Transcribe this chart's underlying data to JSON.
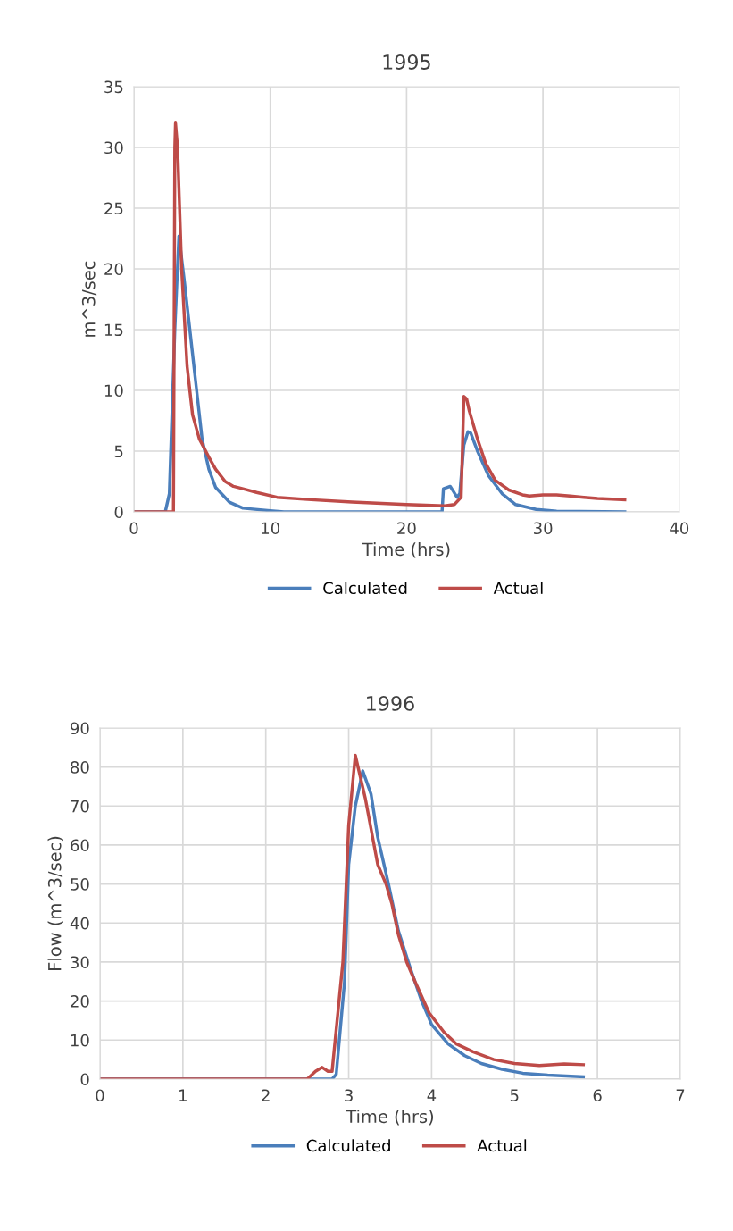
{
  "chart_data": [
    {
      "type": "line",
      "title": "1995",
      "xlabel": "Time (hrs)",
      "ylabel": "m^3/sec",
      "xlim": [
        0,
        40
      ],
      "xticks": [
        0,
        10,
        20,
        30,
        40
      ],
      "ylim": [
        0,
        35
      ],
      "yticks": [
        0,
        5,
        10,
        15,
        20,
        25,
        30,
        35
      ],
      "grid": true,
      "legend": "bottom",
      "marker": "none",
      "line_style": "solid",
      "series": [
        {
          "name": "Calculated",
          "color": "#4a7ebb",
          "x": [
            0,
            2.3,
            2.6,
            3.0,
            3.3,
            3.7,
            4.1,
            4.5,
            5.0,
            5.5,
            6.0,
            7.0,
            8.0,
            10.0,
            11.0,
            22.6,
            22.7,
            23.2,
            23.7,
            23.9,
            24.2,
            24.5,
            24.7,
            25.2,
            26.0,
            27.0,
            28.0,
            29.5,
            31.0,
            36.0
          ],
          "values": [
            0,
            0,
            1.5,
            15,
            22.7,
            19,
            15,
            11,
            6,
            3.5,
            2,
            0.8,
            0.3,
            0.1,
            0,
            0,
            1.9,
            2.1,
            1.2,
            1.5,
            5.5,
            6.6,
            6.5,
            5,
            3,
            1.5,
            0.6,
            0.2,
            0.05,
            0
          ]
        },
        {
          "name": "Actual",
          "color": "#be4b48",
          "x": [
            0,
            2.9,
            3.0,
            3.05,
            3.2,
            3.5,
            3.9,
            4.3,
            4.8,
            5.5,
            6.0,
            6.7,
            7.3,
            8.0,
            9.0,
            10.5,
            13.0,
            16.0,
            20.0,
            22.8,
            23.5,
            24.0,
            24.2,
            24.4,
            24.6,
            25.2,
            25.8,
            26.5,
            27.5,
            28.5,
            29.0,
            30.0,
            31.0,
            32.0,
            33.0,
            34.0,
            36.0
          ],
          "values": [
            0,
            0,
            30,
            32,
            30,
            20,
            12,
            8,
            6,
            4.5,
            3.5,
            2.5,
            2.1,
            1.9,
            1.6,
            1.2,
            1.0,
            0.8,
            0.6,
            0.5,
            0.6,
            1.2,
            9.5,
            9.3,
            8.3,
            6,
            4,
            2.6,
            1.8,
            1.4,
            1.3,
            1.4,
            1.4,
            1.3,
            1.2,
            1.1,
            1.0
          ]
        }
      ]
    },
    {
      "type": "line",
      "title": "1996",
      "xlabel": "Time (hrs)",
      "ylabel": "Flow (m^3/sec)",
      "xlim": [
        0,
        7
      ],
      "xticks": [
        0,
        1,
        2,
        3,
        4,
        5,
        6,
        7
      ],
      "ylim": [
        0,
        90
      ],
      "yticks": [
        0,
        10,
        20,
        30,
        40,
        50,
        60,
        70,
        80,
        90
      ],
      "grid": true,
      "legend": "bottom",
      "marker": "none",
      "line_style": "solid",
      "series": [
        {
          "name": "Calculated",
          "color": "#4a7ebb",
          "x": [
            0,
            2.8,
            2.85,
            2.95,
            3.0,
            3.08,
            3.17,
            3.27,
            3.35,
            3.48,
            3.6,
            3.75,
            3.88,
            4.0,
            4.2,
            4.4,
            4.6,
            4.85,
            5.1,
            5.4,
            5.83
          ],
          "values": [
            0,
            0,
            1.2,
            25,
            55,
            70,
            79,
            73,
            62,
            50,
            38,
            28,
            20,
            14,
            9,
            6,
            4,
            2.5,
            1.5,
            1,
            0.6
          ]
        },
        {
          "name": "Actual",
          "color": "#be4b48",
          "x": [
            0,
            2.5,
            2.6,
            2.68,
            2.75,
            2.8,
            2.93,
            3.0,
            3.08,
            3.2,
            3.35,
            3.45,
            3.52,
            3.6,
            3.7,
            3.8,
            3.97,
            4.15,
            4.3,
            4.5,
            4.75,
            5.0,
            5.3,
            5.6,
            5.83
          ],
          "values": [
            0,
            0,
            2,
            3,
            2,
            2,
            30,
            65,
            83,
            72,
            55,
            50,
            45,
            37,
            30,
            25,
            17,
            12,
            9,
            7,
            5,
            4,
            3.5,
            3.9,
            3.7
          ]
        }
      ]
    }
  ]
}
